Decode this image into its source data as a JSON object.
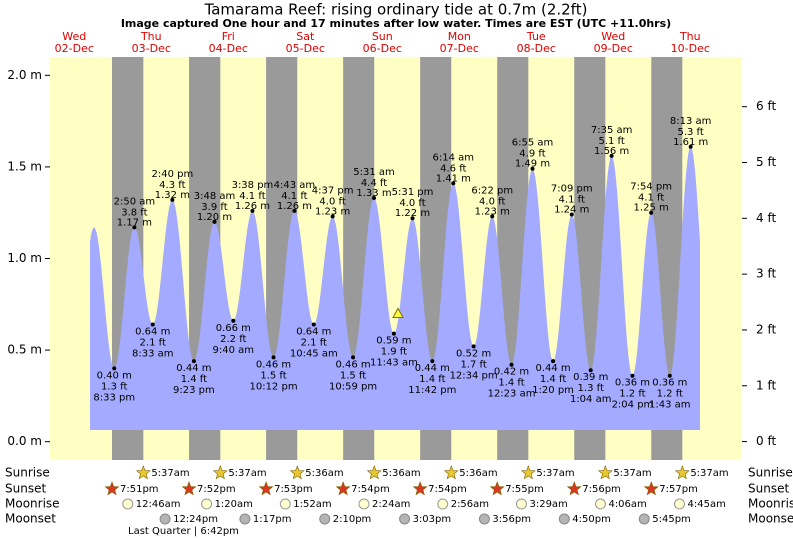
{
  "title": "Tamarama Reef: rising  ordinary tide at 0.7m (2.2ft)",
  "subtitle": "Image captured One hour and 17 minutes after low water. Times are EST (UTC +11.0hrs)",
  "chart_data": {
    "type": "area",
    "days": [
      {
        "weekday": "Wed",
        "date": "02-Dec"
      },
      {
        "weekday": "Thu",
        "date": "03-Dec"
      },
      {
        "weekday": "Fri",
        "date": "04-Dec"
      },
      {
        "weekday": "Sat",
        "date": "05-Dec"
      },
      {
        "weekday": "Sun",
        "date": "06-Dec"
      },
      {
        "weekday": "Mon",
        "date": "07-Dec"
      },
      {
        "weekday": "Tue",
        "date": "08-Dec"
      },
      {
        "weekday": "Wed",
        "date": "09-Dec"
      },
      {
        "weekday": "Thu",
        "date": "10-Dec"
      }
    ],
    "ylim": [
      -0.1,
      2.1
    ],
    "yticks": [
      {
        "value": 0,
        "label": "0.0 m"
      },
      {
        "value": 0.5,
        "label": "0.5 m"
      },
      {
        "value": 1,
        "label": "1.0 m"
      },
      {
        "value": 1.5,
        "label": "1.5 m"
      },
      {
        "value": 2,
        "label": "2.0 m"
      }
    ],
    "y2lim": [
      -0.33,
      6.89
    ],
    "y2ticks": [
      {
        "value": 0,
        "label": "0 ft"
      },
      {
        "value": 1,
        "label": "1 ft"
      },
      {
        "value": 2,
        "label": "2 ft"
      },
      {
        "value": 3,
        "label": "3 ft"
      },
      {
        "value": 4,
        "label": "4 ft"
      },
      {
        "value": 5,
        "label": "5 ft"
      },
      {
        "value": 6,
        "label": "6 ft"
      }
    ],
    "color": "#a3aaff",
    "current_level": 0.7,
    "extremes": {
      "times": [
        "8:33 pm",
        "2:50 am",
        "8:33 am",
        "2:40 pm",
        "9:23 pm",
        "3:48 am",
        "9:40 am",
        "3:38 pm",
        "10:12 pm",
        "4:43 am",
        "10:45 am",
        "4:37 pm",
        "10:59 pm",
        "5:31 am",
        "11:43 am",
        "5:31 pm",
        "11:42 pm",
        "6:14 am",
        "12:34 pm",
        "6:22 pm",
        "12:23 am",
        "6:55 am",
        "1:20 pm",
        "7:09 pm",
        "1:04 am",
        "7:35 am",
        "2:04 pm",
        "7:54 pm",
        "1:43 am",
        "8:13 am"
      ],
      "values": [
        0.4,
        1.17,
        0.64,
        1.32,
        0.44,
        1.2,
        0.66,
        1.26,
        0.46,
        1.26,
        0.64,
        1.23,
        0.46,
        1.33,
        0.59,
        1.22,
        0.44,
        1.41,
        0.52,
        1.23,
        0.42,
        1.49,
        0.44,
        1.24,
        0.39,
        1.56,
        0.36,
        1.25,
        0.36,
        1.61
      ],
      "value_labels": [
        "0.40 m",
        "1.17 m",
        "0.64 m",
        "1.32 m",
        "0.44 m",
        "1.20 m",
        "0.66 m",
        "1.26 m",
        "0.46 m",
        "1.26 m",
        "0.64 m",
        "1.23 m",
        "0.46 m",
        "1.33 m",
        "0.59 m",
        "1.22 m",
        "0.44 m",
        "1.41 m",
        "0.52 m",
        "1.23 m",
        "0.42 m",
        "1.49 m",
        "0.44 m",
        "1.24 m",
        "0.39 m",
        "1.56 m",
        "0.36 m",
        "1.25 m",
        "0.36 m",
        "1.61 m"
      ],
      "ft_labels": [
        "1.3 ft",
        "3.8 ft",
        "2.1 ft",
        "4.3 ft",
        "1.4 ft",
        "3.9 ft",
        "2.2 ft",
        "4.1 ft",
        "1.5 ft",
        "4.1 ft",
        "2.1 ft",
        "4.0 ft",
        "1.5 ft",
        "4.4 ft",
        "1.9 ft",
        "4.0 ft",
        "1.4 ft",
        "4.6 ft",
        "1.7 ft",
        "4.0 ft",
        "1.4 ft",
        "4.9 ft",
        "1.4 ft",
        "4.1 ft",
        "1.3 ft",
        "5.1 ft",
        "1.2 ft",
        "4.1 ft",
        "1.2 ft",
        "5.3 ft"
      ]
    },
    "rows": [
      {
        "label": "Sunrise",
        "times": [
          "5:37am",
          "5:37am",
          "5:36am",
          "5:36am",
          "5:36am",
          "5:37am",
          "5:37am",
          "5:37am"
        ]
      },
      {
        "label": "Sunset",
        "times": [
          "7:51pm",
          "7:52pm",
          "7:53pm",
          "7:54pm",
          "7:54pm",
          "7:55pm",
          "7:56pm",
          "7:57pm"
        ]
      },
      {
        "label": "Moonrise",
        "times": [
          "12:46am",
          "1:20am",
          "1:52am",
          "2:24am",
          "2:56am",
          "3:29am",
          "4:06am",
          "4:45am"
        ]
      },
      {
        "label": "Moonset",
        "times": [
          "12:24pm",
          "1:17pm",
          "2:10pm",
          "3:03pm",
          "3:56pm",
          "4:50pm",
          "5:45pm"
        ]
      }
    ],
    "moon_phase": "Last Quarter | 6:42pm"
  }
}
